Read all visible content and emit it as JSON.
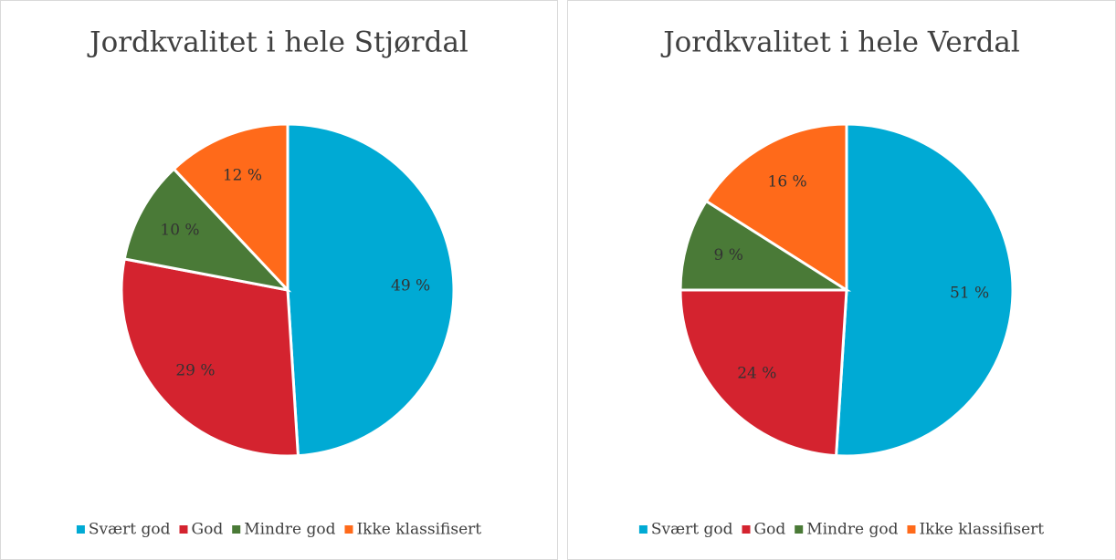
{
  "chart_data": [
    {
      "type": "pie",
      "title": "Jordkvalitet i hele Stjørdal",
      "categories": [
        "Svært god",
        "God",
        "Mindre god",
        "Ikke klassifisert"
      ],
      "values": [
        49,
        29,
        10,
        12
      ],
      "value_labels": [
        "49 %",
        "29 %",
        "10 %",
        "12 %"
      ],
      "colors": [
        "#00aad4",
        "#d4232f",
        "#4a7a37",
        "#ff6a1a"
      ]
    },
    {
      "type": "pie",
      "title": "Jordkvalitet i hele Verdal",
      "categories": [
        "Svært god",
        "God",
        "Mindre god",
        "Ikke klassifisert"
      ],
      "values": [
        51,
        24,
        9,
        16
      ],
      "value_labels": [
        "51 %",
        "24 %",
        "9 %",
        "16 %"
      ],
      "colors": [
        "#00aad4",
        "#d4232f",
        "#4a7a37",
        "#ff6a1a"
      ]
    }
  ]
}
